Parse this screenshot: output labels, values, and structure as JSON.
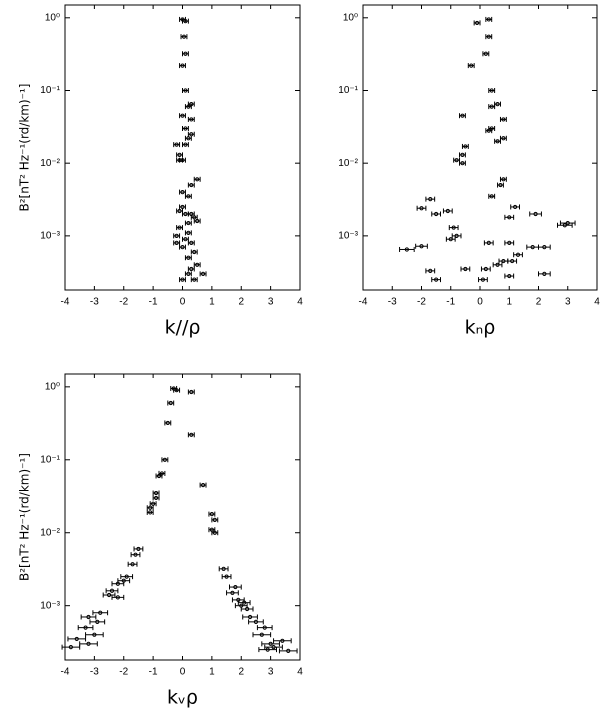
{
  "chart_data": [
    {
      "type": "scatter",
      "x_label": "k//ρ",
      "y_label": "B²[nT² Hz⁻¹(rd/km)⁻¹]",
      "log_y": true,
      "xlim": [
        -4,
        4
      ],
      "xticks": [
        -4,
        -3,
        -2,
        -1,
        0,
        1,
        2,
        3,
        4
      ],
      "ylim": [
        0.00018,
        1.5
      ],
      "yticks": [
        {
          "value": 1,
          "label": "10⁰"
        },
        {
          "value": 0.1,
          "label": "10⁻¹"
        },
        {
          "value": 0.01,
          "label": "10⁻²"
        },
        {
          "value": 0.001,
          "label": "10⁻³"
        }
      ],
      "color": "#000000",
      "x": [
        0,
        0.1,
        0.05,
        0.1,
        0,
        0.1,
        0.3,
        0.2,
        0,
        0.3,
        0.1,
        0.3,
        0.2,
        -0.2,
        0.1,
        -0.1,
        -0.1,
        0,
        0.5,
        0.3,
        0,
        0.2,
        0,
        -0.1,
        0.1,
        0.3,
        0.4,
        0.2,
        0.5,
        -0.1,
        0.2,
        -0.2,
        0.1,
        -0.2,
        0.3,
        0,
        0.4,
        0.2,
        0.5,
        0.3,
        0.7,
        0.2,
        0,
        0.4
      ],
      "values": [
        0.95,
        0.9,
        0.55,
        0.32,
        0.22,
        0.1,
        0.065,
        0.06,
        0.045,
        0.04,
        0.03,
        0.025,
        0.022,
        0.018,
        0.018,
        0.013,
        0.011,
        0.011,
        0.006,
        0.005,
        0.004,
        0.0035,
        0.0025,
        0.0022,
        0.002,
        0.002,
        0.0018,
        0.0015,
        0.0016,
        0.0013,
        0.0011,
        0.001,
        0.0009,
        0.0008,
        0.0008,
        0.0007,
        0.0006,
        0.0005,
        0.0004,
        0.00035,
        0.0003,
        0.0003,
        0.00025,
        0.00025
      ],
      "xerr": [
        0.1,
        0.1,
        0.1,
        0.1,
        0.1,
        0.1,
        0.1,
        0.1,
        0.1,
        0.1,
        0.1,
        0.1,
        0.1,
        0.1,
        0.1,
        0.1,
        0.1,
        0.1,
        0.1,
        0.1,
        0.1,
        0.1,
        0.1,
        0.1,
        0.1,
        0.1,
        0.1,
        0.1,
        0.1,
        0.1,
        0.1,
        0.1,
        0.1,
        0.1,
        0.1,
        0.1,
        0.1,
        0.1,
        0.1,
        0.1,
        0.1,
        0.1,
        0.1,
        0.1
      ]
    },
    {
      "type": "scatter",
      "x_label": "kₙρ",
      "log_y": true,
      "xlim": [
        -4,
        4
      ],
      "xticks": [
        -4,
        -3,
        -2,
        -1,
        0,
        1,
        2,
        3,
        4
      ],
      "ylim": [
        0.00018,
        1.5
      ],
      "yticks": [
        {
          "value": 1,
          "label": "10⁰"
        },
        {
          "value": 0.1,
          "label": "10⁻¹"
        },
        {
          "value": 0.01,
          "label": "10⁻²"
        },
        {
          "value": 0.001,
          "label": "10⁻³"
        }
      ],
      "color": "#000000",
      "x": [
        -0.1,
        0.3,
        0.3,
        0.2,
        -0.3,
        0.4,
        0.6,
        0.4,
        0.8,
        -0.6,
        0.4,
        0.3,
        0.8,
        0.6,
        -0.5,
        -0.6,
        -0.8,
        -0.6,
        0.8,
        0.7,
        0.4,
        -1.7,
        -2,
        -1.5,
        -1.1,
        1.2,
        1.9,
        1,
        -0.9,
        3,
        2.9,
        -0.8,
        -1,
        -2.5,
        -2,
        0.3,
        1,
        1.8,
        2.2,
        1.3,
        0.8,
        0.6,
        1.1,
        -0.5,
        -1.7,
        0.2,
        2.2,
        0.1,
        -1.5,
        1
      ],
      "values": [
        0.85,
        0.95,
        0.55,
        0.32,
        0.22,
        0.1,
        0.065,
        0.06,
        0.04,
        0.045,
        0.03,
        0.028,
        0.022,
        0.02,
        0.017,
        0.013,
        0.011,
        0.01,
        0.006,
        0.005,
        0.0035,
        0.0032,
        0.0024,
        0.002,
        0.0022,
        0.0025,
        0.002,
        0.0018,
        0.0013,
        0.0015,
        0.0014,
        0.001,
        0.0009,
        0.00065,
        0.00072,
        0.0008,
        0.0008,
        0.0007,
        0.0007,
        0.00055,
        0.00045,
        0.0004,
        0.00045,
        0.00035,
        0.00033,
        0.00035,
        0.0003,
        0.00025,
        0.00025,
        0.00028
      ],
      "xerr": [
        0.1,
        0.1,
        0.1,
        0.1,
        0.1,
        0.1,
        0.1,
        0.1,
        0.1,
        0.1,
        0.1,
        0.1,
        0.1,
        0.1,
        0.1,
        0.1,
        0.1,
        0.1,
        0.1,
        0.1,
        0.1,
        0.15,
        0.15,
        0.15,
        0.15,
        0.15,
        0.2,
        0.15,
        0.15,
        0.25,
        0.25,
        0.15,
        0.15,
        0.25,
        0.2,
        0.15,
        0.15,
        0.2,
        0.2,
        0.15,
        0.15,
        0.15,
        0.15,
        0.15,
        0.15,
        0.15,
        0.2,
        0.15,
        0.15,
        0.15
      ]
    },
    {
      "type": "scatter",
      "x_label": "kᵥρ",
      "y_label": "B²[nT² Hz⁻¹(rd/km)⁻¹]",
      "log_y": true,
      "xlim": [
        -4,
        4
      ],
      "xticks": [
        -4,
        -3,
        -2,
        -1,
        0,
        1,
        2,
        3,
        4
      ],
      "ylim": [
        0.00018,
        1.5
      ],
      "yticks": [
        {
          "value": 1,
          "label": "10⁰"
        },
        {
          "value": 0.1,
          "label": "10⁻¹"
        },
        {
          "value": 0.01,
          "label": "10⁻²"
        },
        {
          "value": 0.001,
          "label": "10⁻³"
        }
      ],
      "color": "#000000",
      "x": [
        -0.3,
        -0.2,
        0.3,
        -0.4,
        -0.5,
        0.3,
        -0.6,
        -0.7,
        -0.8,
        0.7,
        -0.9,
        -0.9,
        -1,
        -1.1,
        -1.1,
        1,
        1.1,
        1,
        1.1,
        -1.5,
        -1.6,
        -1.7,
        1.4,
        1.5,
        -1.9,
        -2,
        -2.2,
        -2.4,
        -2.5,
        -2.2,
        1.8,
        1.7,
        1.9,
        2.1,
        2,
        2.2,
        -2.8,
        -3.2,
        -2.9,
        -3.3,
        2.3,
        2.5,
        2.8,
        -3,
        -3.6,
        -3.2,
        -3.8,
        2.7,
        3,
        3.4,
        3.1,
        3.6,
        2.9
      ],
      "values": [
        0.95,
        0.9,
        0.85,
        0.6,
        0.32,
        0.22,
        0.1,
        0.065,
        0.06,
        0.045,
        0.035,
        0.03,
        0.025,
        0.022,
        0.019,
        0.018,
        0.015,
        0.011,
        0.01,
        0.006,
        0.005,
        0.0037,
        0.0032,
        0.0025,
        0.0025,
        0.0022,
        0.002,
        0.0016,
        0.0014,
        0.0013,
        0.0018,
        0.0015,
        0.0012,
        0.0011,
        0.001,
        0.0009,
        0.0008,
        0.0007,
        0.0006,
        0.0005,
        0.0007,
        0.0006,
        0.0005,
        0.0004,
        0.00035,
        0.0003,
        0.00027,
        0.0004,
        0.0003,
        0.00033,
        0.00027,
        0.00024,
        0.00025
      ],
      "xerr": [
        0.1,
        0.1,
        0.1,
        0.1,
        0.1,
        0.1,
        0.1,
        0.1,
        0.1,
        0.1,
        0.1,
        0.1,
        0.1,
        0.1,
        0.1,
        0.1,
        0.1,
        0.1,
        0.1,
        0.15,
        0.15,
        0.15,
        0.15,
        0.15,
        0.2,
        0.2,
        0.2,
        0.2,
        0.2,
        0.2,
        0.2,
        0.2,
        0.2,
        0.2,
        0.2,
        0.2,
        0.25,
        0.25,
        0.25,
        0.25,
        0.25,
        0.25,
        0.25,
        0.3,
        0.3,
        0.3,
        0.3,
        0.3,
        0.3,
        0.3,
        0.3,
        0.3,
        0.3
      ]
    }
  ]
}
